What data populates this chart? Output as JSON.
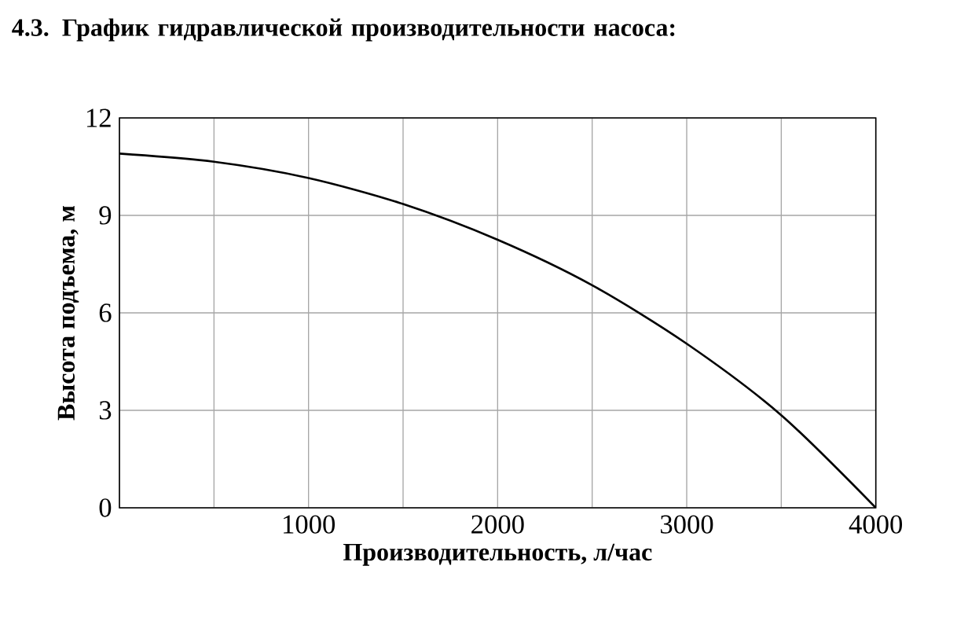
{
  "chart_data": {
    "type": "line",
    "title": "4.3. График гидравлической производительности насоса:",
    "xlabel": "Производительность, л/час",
    "ylabel": "Высота подъема, м",
    "x": [
      0,
      500,
      1000,
      1500,
      2000,
      2500,
      3000,
      3500,
      4000
    ],
    "series": [
      {
        "color": "#000000",
        "values": [
          10.9,
          10.65,
          10.15,
          9.35,
          8.25,
          6.85,
          5.05,
          2.85,
          0
        ]
      }
    ],
    "xlim": [
      0,
      4000
    ],
    "ylim": [
      0,
      12
    ],
    "xticks": [
      {
        "value": 0,
        "label": null
      },
      {
        "value": 500,
        "label": null
      },
      1000,
      {
        "value": 1500,
        "label": null
      },
      2000,
      {
        "value": 2500,
        "label": null
      },
      3000,
      {
        "value": 3500,
        "label": null
      },
      4000
    ],
    "yticks": [
      0,
      3,
      6,
      9,
      12
    ],
    "grid": true,
    "marker": "none",
    "line_style": "solid"
  }
}
